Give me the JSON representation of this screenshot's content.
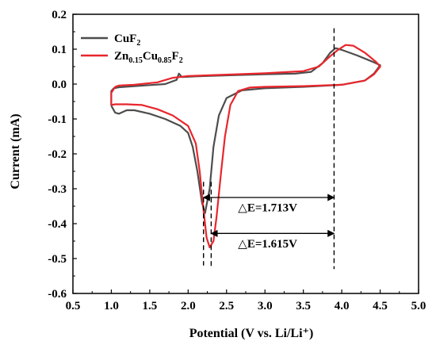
{
  "chart_data": {
    "type": "line",
    "title": "",
    "xlabel": "Potential (V vs. Li/Li⁺)",
    "ylabel": "Current (mA)",
    "xlim": [
      0.5,
      5.0
    ],
    "ylim": [
      -0.6,
      0.2
    ],
    "x_ticks": [
      "0.5",
      "1.0",
      "1.5",
      "2.0",
      "2.5",
      "3.0",
      "3.5",
      "4.0",
      "4.5",
      "5.0"
    ],
    "y_ticks": [
      "0.2",
      "0.1",
      "0.0",
      "-0.1",
      "-0.2",
      "-0.3",
      "-0.4",
      "-0.5",
      "-0.6"
    ],
    "grid": false,
    "legend_position": "top-left",
    "legend": [
      {
        "base": "CuF",
        "sub": "2",
        "color": "#4d4d4d"
      },
      {
        "base": "Zn",
        "sub1": "0.15",
        "mid": "Cu",
        "sub2": "0.85",
        "end": "F",
        "sub3": "2",
        "color": "#e8262c"
      }
    ],
    "series": [
      {
        "name": "CuF2",
        "color": "#4d4d4d",
        "points": [
          [
            1.0,
            -0.062
          ],
          [
            1.0,
            -0.02
          ],
          [
            1.03,
            -0.012
          ],
          [
            1.1,
            -0.009
          ],
          [
            1.3,
            -0.006
          ],
          [
            1.5,
            -0.003
          ],
          [
            1.7,
            0.0
          ],
          [
            1.85,
            0.012
          ],
          [
            1.88,
            0.03
          ],
          [
            1.92,
            0.02
          ],
          [
            2.1,
            0.022
          ],
          [
            2.5,
            0.025
          ],
          [
            3.0,
            0.028
          ],
          [
            3.4,
            0.03
          ],
          [
            3.6,
            0.035
          ],
          [
            3.75,
            0.06
          ],
          [
            3.85,
            0.09
          ],
          [
            3.92,
            0.103
          ],
          [
            4.0,
            0.098
          ],
          [
            4.2,
            0.082
          ],
          [
            4.4,
            0.064
          ],
          [
            4.5,
            0.054
          ],
          [
            4.42,
            0.03
          ],
          [
            4.3,
            0.01
          ],
          [
            4.0,
            -0.002
          ],
          [
            3.5,
            -0.008
          ],
          [
            3.0,
            -0.012
          ],
          [
            2.7,
            -0.018
          ],
          [
            2.5,
            -0.04
          ],
          [
            2.4,
            -0.09
          ],
          [
            2.33,
            -0.18
          ],
          [
            2.28,
            -0.3
          ],
          [
            2.22,
            -0.37
          ],
          [
            2.18,
            -0.34
          ],
          [
            2.12,
            -0.25
          ],
          [
            2.06,
            -0.18
          ],
          [
            2.0,
            -0.14
          ],
          [
            1.9,
            -0.12
          ],
          [
            1.7,
            -0.1
          ],
          [
            1.5,
            -0.085
          ],
          [
            1.3,
            -0.075
          ],
          [
            1.2,
            -0.075
          ],
          [
            1.1,
            -0.085
          ],
          [
            1.05,
            -0.082
          ],
          [
            1.0,
            -0.062
          ]
        ]
      },
      {
        "name": "Zn0.15Cu0.85F2",
        "color": "#e8262c",
        "points": [
          [
            1.0,
            -0.06
          ],
          [
            1.0,
            -0.025
          ],
          [
            1.05,
            -0.008
          ],
          [
            1.1,
            -0.004
          ],
          [
            1.3,
            -0.002
          ],
          [
            1.6,
            0.005
          ],
          [
            1.8,
            0.018
          ],
          [
            2.0,
            0.023
          ],
          [
            2.5,
            0.027
          ],
          [
            3.0,
            0.031
          ],
          [
            3.5,
            0.037
          ],
          [
            3.7,
            0.05
          ],
          [
            3.85,
            0.08
          ],
          [
            3.95,
            0.098
          ],
          [
            4.05,
            0.112
          ],
          [
            4.15,
            0.11
          ],
          [
            4.3,
            0.09
          ],
          [
            4.45,
            0.063
          ],
          [
            4.5,
            0.05
          ],
          [
            4.42,
            0.028
          ],
          [
            4.3,
            0.01
          ],
          [
            4.0,
            -0.002
          ],
          [
            3.5,
            -0.006
          ],
          [
            3.0,
            -0.008
          ],
          [
            2.8,
            -0.01
          ],
          [
            2.65,
            -0.02
          ],
          [
            2.55,
            -0.06
          ],
          [
            2.48,
            -0.15
          ],
          [
            2.43,
            -0.25
          ],
          [
            2.37,
            -0.38
          ],
          [
            2.33,
            -0.45
          ],
          [
            2.28,
            -0.468
          ],
          [
            2.24,
            -0.44
          ],
          [
            2.2,
            -0.36
          ],
          [
            2.15,
            -0.25
          ],
          [
            2.1,
            -0.17
          ],
          [
            2.0,
            -0.12
          ],
          [
            1.8,
            -0.09
          ],
          [
            1.6,
            -0.072
          ],
          [
            1.4,
            -0.06
          ],
          [
            1.2,
            -0.058
          ],
          [
            1.05,
            -0.058
          ],
          [
            1.0,
            -0.06
          ]
        ]
      }
    ],
    "annotations": [
      {
        "text": "△E=1.713V",
        "x1": 2.2,
        "x2": 3.9,
        "y": -0.325,
        "text_x": 2.65,
        "text_y": -0.365
      },
      {
        "text": "△E=1.615V",
        "x1": 2.3,
        "x2": 3.9,
        "y": -0.428,
        "text_x": 2.65,
        "text_y": -0.468
      }
    ],
    "dashed_lines": [
      {
        "x": 2.2,
        "y_from": -0.28,
        "y_to": -0.52
      },
      {
        "x": 2.3,
        "y_from": -0.28,
        "y_to": -0.53
      },
      {
        "x": 3.9,
        "y_from": 0.16,
        "y_to": -0.53
      }
    ]
  }
}
